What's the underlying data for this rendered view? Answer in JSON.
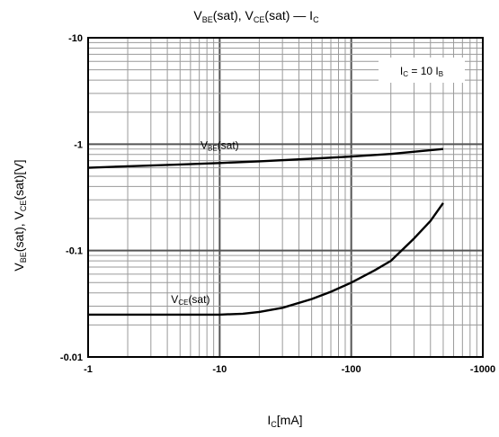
{
  "chart_data": {
    "type": "line",
    "title": {
      "parts": [
        {
          "t": "V",
          "sub": "BE"
        },
        {
          "t": "(sat), V",
          "sub": "CE"
        },
        {
          "t": "(sat) — I",
          "sub": "C"
        }
      ]
    },
    "xlabel": {
      "parts": [
        {
          "t": "I",
          "sub": "C"
        },
        {
          "t": "[mA]"
        }
      ]
    },
    "ylabel": {
      "parts": [
        {
          "t": "V",
          "sub": "BE"
        },
        {
          "t": "(sat), V",
          "sub": "CE"
        },
        {
          "t": "(sat)[V]"
        }
      ]
    },
    "x_scale": "log",
    "y_scale": "log",
    "x_direction": "reversed-magnitude (negative values)",
    "xlim": [
      -1,
      -1000
    ],
    "ylim": [
      -0.01,
      -10
    ],
    "x_ticks": [
      "-1",
      "-10",
      "-100",
      "-1000"
    ],
    "y_ticks": [
      "-10",
      "-1",
      "-0.1",
      "-0.01"
    ],
    "grid": true,
    "legend_box": {
      "parts": [
        {
          "t": "I",
          "sub": "C"
        },
        {
          "t": " = 10 I",
          "sub": "B"
        }
      ],
      "position": "top-right"
    },
    "series": [
      {
        "name": {
          "parts": [
            {
              "t": "V",
              "sub": "BE"
            },
            {
              "t": "(sat)"
            }
          ]
        },
        "x": [
          -1,
          -2,
          -5,
          -10,
          -20,
          -50,
          -100,
          -200,
          -500
        ],
        "y": [
          -0.6,
          -0.62,
          -0.645,
          -0.665,
          -0.69,
          -0.73,
          -0.765,
          -0.81,
          -0.9
        ]
      },
      {
        "name": {
          "parts": [
            {
              "t": "V",
              "sub": "CE"
            },
            {
              "t": "(sat)"
            }
          ]
        },
        "x": [
          -1,
          -3,
          -10,
          -15,
          -20,
          -30,
          -50,
          -70,
          -100,
          -150,
          -200,
          -300,
          -400,
          -500
        ],
        "y": [
          -0.025,
          -0.025,
          -0.025,
          -0.0255,
          -0.0265,
          -0.029,
          -0.035,
          -0.041,
          -0.05,
          -0.065,
          -0.08,
          -0.13,
          -0.19,
          -0.28
        ]
      }
    ]
  }
}
